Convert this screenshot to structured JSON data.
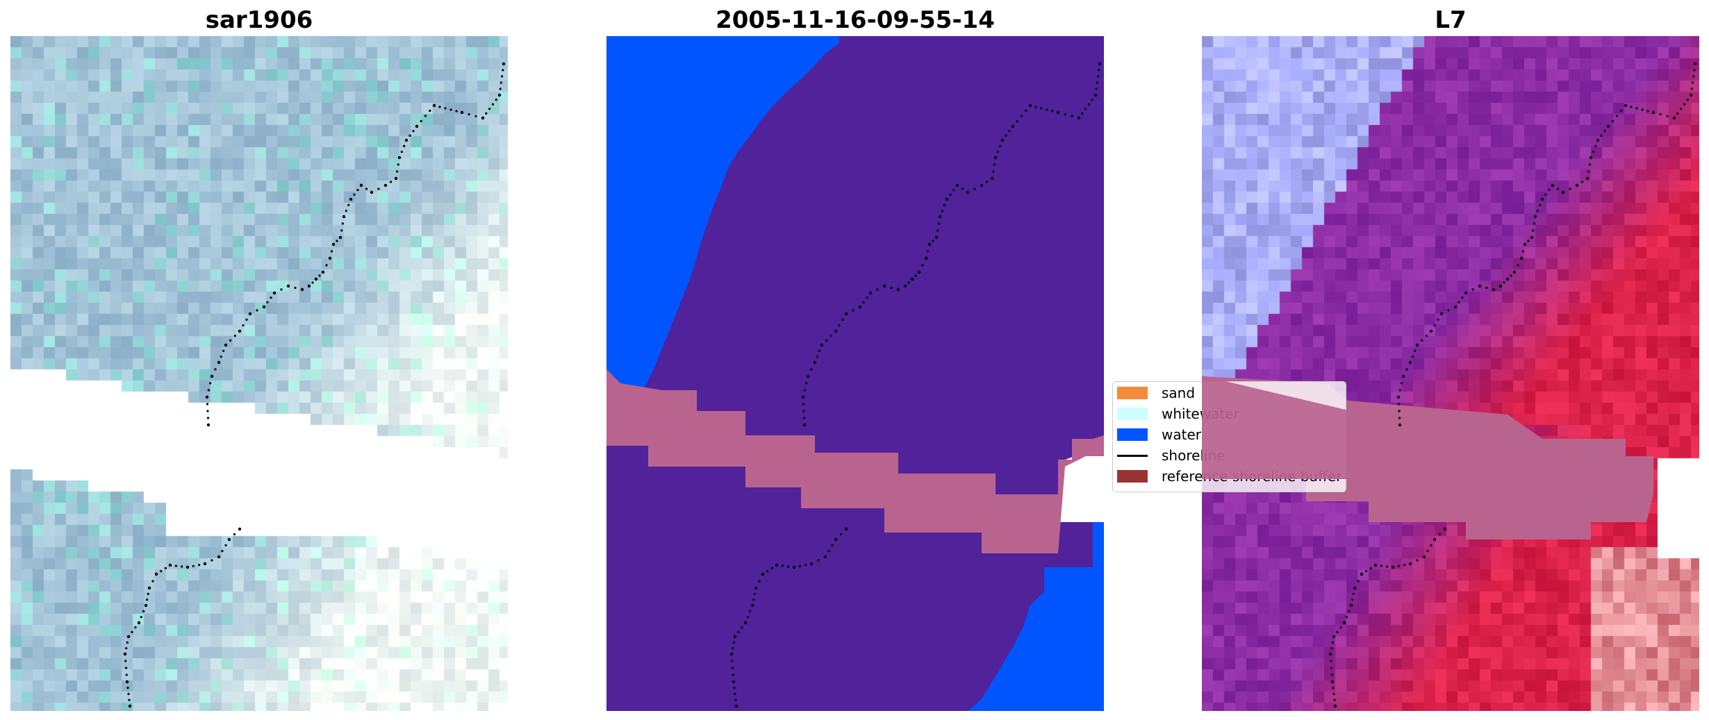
{
  "panels": [
    {
      "title": "sar1906"
    },
    {
      "title": "2005-11-16-09-55-14"
    },
    {
      "title": "L7"
    }
  ],
  "legend": {
    "items": [
      {
        "label": "sand",
        "color": "#f28c3c",
        "kind": "patch"
      },
      {
        "label": "whitewater",
        "color": "#ccffff",
        "kind": "patch"
      },
      {
        "label": "water",
        "color": "#0055ff",
        "kind": "patch"
      },
      {
        "label": "shoreline",
        "color": "#000000",
        "kind": "line"
      },
      {
        "label": "reference shoreline buffer",
        "color": "#9a3333",
        "kind": "patch"
      }
    ]
  },
  "colors": {
    "class_land": "#51229a",
    "class_water": "#0055ff",
    "buffer_overlay": "#b9648f",
    "shoreline": "#000000"
  }
}
